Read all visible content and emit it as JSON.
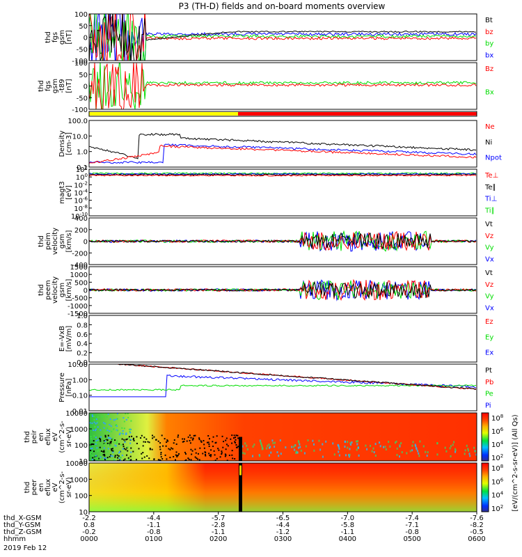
{
  "title": "P3 (TH-D) fields and on-board moments overview",
  "colors": {
    "black": "#000000",
    "red": "#ff0000",
    "green": "#00dd00",
    "blue": "#0000ff",
    "yellow": "#ffff00"
  },
  "chart_data": [
    {
      "type": "line",
      "panel": "fgs_gsm",
      "ylabel": [
        "thd",
        "fgs",
        "gsm",
        "[nT]"
      ],
      "ylim": [
        -100,
        100
      ],
      "yticks": [
        "100",
        "50",
        "0",
        "-50",
        "-100"
      ],
      "legend": [
        {
          "name": "Bt",
          "color": "#000000"
        },
        {
          "name": "bz",
          "color": "#ff0000"
        },
        {
          "name": "by",
          "color": "#00dd00"
        },
        {
          "name": "bx",
          "color": "#0000ff"
        }
      ]
    },
    {
      "type": "line",
      "panel": "fgs_gsm_offset",
      "ylabel": [
        "thd",
        "fgs",
        "gsm",
        "-t89",
        "[nT]"
      ],
      "ylim": [
        -120,
        100
      ],
      "yticks": [
        "100",
        "50",
        "0",
        "-50",
        "-100"
      ],
      "legend": [
        {
          "name": "Bz",
          "color": "#ff0000"
        },
        {
          "name": "Bx",
          "color": "#00dd00"
        }
      ]
    },
    {
      "type": "bar",
      "panel": "mode_bar",
      "segments": [
        {
          "from": "0000",
          "to": "0222",
          "color": "#ffff00"
        },
        {
          "from": "0222",
          "to": "0600",
          "color": "#ff0000"
        }
      ]
    },
    {
      "type": "line",
      "panel": "density",
      "scale": "log",
      "ylabel": [
        "Density",
        "[cm-3]"
      ],
      "ylim": [
        0.1,
        100
      ],
      "yticks": [
        "100.0",
        "10.0",
        "1.0",
        "0.1"
      ],
      "legend": [
        {
          "name": "Ne",
          "color": "#ff0000"
        },
        {
          "name": "Ni",
          "color": "#000000"
        },
        {
          "name": "Npot",
          "color": "#0000ff"
        }
      ]
    },
    {
      "type": "line",
      "panel": "temperature",
      "scale": "log",
      "ylabel": [
        "magt3",
        "[eV]"
      ],
      "ylim": [
        1e-10,
        100.0
      ],
      "yticks": [
        "10^2",
        "10^0",
        "10^-2",
        "10^-4",
        "10^-6",
        "10^-8",
        "10^-10"
      ],
      "legend": [
        {
          "name": "Te⊥",
          "color": "#ff0000"
        },
        {
          "name": "Te∥",
          "color": "#000000"
        },
        {
          "name": "Ti⊥",
          "color": "#0000ff"
        },
        {
          "name": "Ti∥",
          "color": "#00dd00"
        }
      ]
    },
    {
      "type": "line",
      "panel": "ion_velocity",
      "ylabel": [
        "thd",
        "peim",
        "velocity",
        "gsm",
        "[km/s]"
      ],
      "ylim": [
        -400,
        400
      ],
      "yticks": [
        "400",
        "200",
        "0",
        "-200",
        "-400"
      ],
      "legend": [
        {
          "name": "Vt",
          "color": "#000000"
        },
        {
          "name": "Vz",
          "color": "#ff0000"
        },
        {
          "name": "Vy",
          "color": "#00dd00"
        },
        {
          "name": "Vx",
          "color": "#0000ff"
        }
      ]
    },
    {
      "type": "line",
      "panel": "electron_velocity",
      "ylabel": [
        "thd",
        "peem",
        "velocity",
        "gsm",
        "[km/s]"
      ],
      "ylim": [
        -1500,
        1500
      ],
      "yticks": [
        "1500",
        "1000",
        "500",
        "0",
        "-500",
        "-1000",
        "-1500"
      ],
      "legend": [
        {
          "name": "Vt",
          "color": "#000000"
        },
        {
          "name": "Vz",
          "color": "#ff0000"
        },
        {
          "name": "Vy",
          "color": "#00dd00"
        },
        {
          "name": "Vx",
          "color": "#0000ff"
        }
      ]
    },
    {
      "type": "line",
      "panel": "efield",
      "ylabel": [
        "E=-VxB",
        "[mV/m]"
      ],
      "ylim": [
        0,
        1
      ],
      "yticks": [
        "1.0",
        "0.8",
        "0.6",
        "0.4",
        "0.2",
        "0.0"
      ],
      "legend": [
        {
          "name": "Ez",
          "color": "#ff0000"
        },
        {
          "name": "Ey",
          "color": "#00dd00"
        },
        {
          "name": "Ex",
          "color": "#0000ff"
        }
      ]
    },
    {
      "type": "line",
      "panel": "pressure",
      "scale": "log",
      "ylabel": [
        "Pressure",
        "[nPa]"
      ],
      "ylim": [
        0.01,
        10
      ],
      "yticks": [
        "10.00",
        "1.00",
        "0.10",
        "0.01"
      ],
      "legend": [
        {
          "name": "Pt",
          "color": "#000000"
        },
        {
          "name": "Pb",
          "color": "#ff0000"
        },
        {
          "name": "Pe",
          "color": "#00dd00"
        },
        {
          "name": "Pi",
          "color": "#0000ff"
        }
      ]
    },
    {
      "type": "heatmap",
      "panel": "ion_spectrogram",
      "ylabel": [
        "thd",
        "peir",
        "en",
        "eflux",
        "eV",
        "(cm^2-s-",
        "sr-eV)"
      ],
      "scale": "log",
      "ylim": [
        10,
        10000
      ],
      "yticks": [
        "10000",
        "1000",
        "100",
        "10"
      ],
      "zticks": [
        "10^8",
        "10^6",
        "10^4",
        "10^2"
      ]
    },
    {
      "type": "heatmap",
      "panel": "electron_spectrogram",
      "ylabel": [
        "thd",
        "peer",
        "en",
        "eflux",
        "eV",
        "(cm^2-s-",
        "sr-eV)"
      ],
      "scale": "log",
      "ylim": [
        10,
        10000
      ],
      "yticks": [
        "10000",
        "1000",
        "100",
        "10"
      ],
      "zticks": [
        "10^8",
        "10^6",
        "10^4",
        "10^2"
      ]
    }
  ],
  "colorbar_label": "[eV/(cm^2-s-sr-eV)] (All Qs)",
  "x_axis": {
    "labels": [
      "thd_X-GSM",
      "thd_Y-GSM",
      "thd_Z-GSM",
      "hhmm",
      "2019 Feb 12"
    ],
    "ticks": [
      {
        "x": "-2.2",
        "y": "0.8",
        "z": "-0.2",
        "t": "0000"
      },
      {
        "x": "-4.4",
        "y": "-1.1",
        "z": "-0.8",
        "t": "0100"
      },
      {
        "x": "-5.7",
        "y": "-2.8",
        "z": "-1.1",
        "t": "0200"
      },
      {
        "x": "-6.5",
        "y": "-4.4",
        "z": "-1.2",
        "t": "0300"
      },
      {
        "x": "-7.0",
        "y": "-5.8",
        "z": "-1.1",
        "t": "0400"
      },
      {
        "x": "-7.4",
        "y": "-7.1",
        "z": "-0.8",
        "t": "0500"
      },
      {
        "x": "-7.6",
        "y": "-8.2",
        "z": "-0.5",
        "t": "0600"
      }
    ]
  }
}
